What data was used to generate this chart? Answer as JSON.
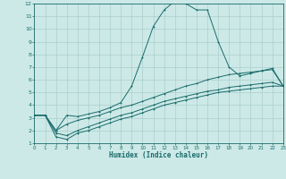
{
  "xlabel": "Humidex (Indice chaleur)",
  "bg_color": "#cce9e7",
  "grid_color": "#aacfcc",
  "line_color": "#1a6b6b",
  "xlim": [
    0,
    23
  ],
  "ylim": [
    1,
    12
  ],
  "xticks": [
    0,
    1,
    2,
    3,
    4,
    5,
    6,
    7,
    8,
    9,
    10,
    11,
    12,
    13,
    14,
    15,
    16,
    17,
    18,
    19,
    20,
    21,
    22,
    23
  ],
  "yticks": [
    1,
    2,
    3,
    4,
    5,
    6,
    7,
    8,
    9,
    10,
    11,
    12
  ],
  "line1_x": [
    0,
    1,
    2,
    3,
    4,
    5,
    6,
    7,
    8,
    9,
    10,
    11,
    12,
    13,
    14,
    15,
    16,
    17,
    18,
    19,
    20,
    21,
    22,
    23
  ],
  "line1_y": [
    3.2,
    3.2,
    2.0,
    3.2,
    3.1,
    3.3,
    3.5,
    3.8,
    4.2,
    5.5,
    7.8,
    10.2,
    11.5,
    12.2,
    12.0,
    11.5,
    11.5,
    9.0,
    7.0,
    6.3,
    6.5,
    6.7,
    6.8,
    5.5
  ],
  "line2_x": [
    0,
    1,
    2,
    3,
    4,
    5,
    6,
    7,
    8,
    9,
    10,
    11,
    12,
    13,
    14,
    15,
    16,
    17,
    18,
    19,
    20,
    21,
    22,
    23
  ],
  "line2_y": [
    3.2,
    3.2,
    2.0,
    2.5,
    2.8,
    3.0,
    3.2,
    3.5,
    3.8,
    4.0,
    4.3,
    4.6,
    4.9,
    5.2,
    5.5,
    5.7,
    6.0,
    6.2,
    6.4,
    6.5,
    6.6,
    6.7,
    6.9,
    5.5
  ],
  "line3_x": [
    0,
    1,
    2,
    3,
    4,
    5,
    6,
    7,
    8,
    9,
    10,
    11,
    12,
    13,
    14,
    15,
    16,
    17,
    18,
    19,
    20,
    21,
    22,
    23
  ],
  "line3_y": [
    3.2,
    3.2,
    1.8,
    1.6,
    2.0,
    2.3,
    2.6,
    2.9,
    3.2,
    3.4,
    3.7,
    4.0,
    4.3,
    4.5,
    4.7,
    4.9,
    5.1,
    5.2,
    5.4,
    5.5,
    5.6,
    5.7,
    5.8,
    5.5
  ],
  "line4_x": [
    0,
    1,
    2,
    3,
    4,
    5,
    6,
    7,
    8,
    9,
    10,
    11,
    12,
    13,
    14,
    15,
    16,
    17,
    18,
    19,
    20,
    21,
    22,
    23
  ],
  "line4_y": [
    3.2,
    3.2,
    1.5,
    1.3,
    1.8,
    2.0,
    2.3,
    2.6,
    2.9,
    3.1,
    3.4,
    3.7,
    4.0,
    4.2,
    4.4,
    4.6,
    4.8,
    5.0,
    5.1,
    5.2,
    5.3,
    5.4,
    5.5,
    5.5
  ]
}
